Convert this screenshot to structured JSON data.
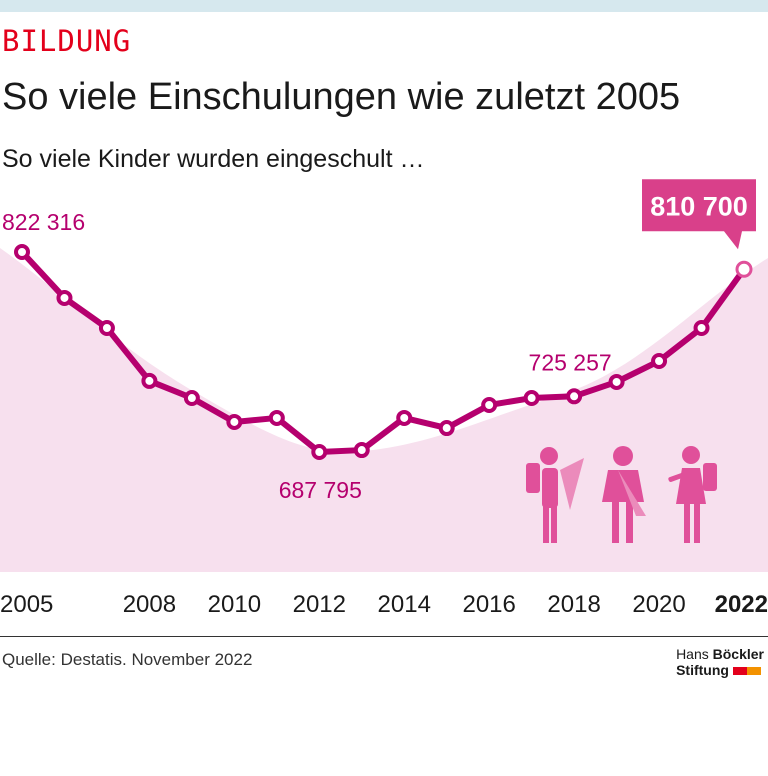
{
  "header": {
    "kicker": "BILDUNG",
    "title": "So viele Einschulungen wie zuletzt 2005",
    "subtitle": "So viele Kinder wurden eingeschult …"
  },
  "footer": {
    "source": "Quelle: Destatis. November 2022",
    "logo_line1_light": "Hans",
    "logo_line1_bold": "Böckler",
    "logo_line2": "Stiftung"
  },
  "colors": {
    "line": "#b5006e",
    "area": "#f7e0ee",
    "icons": "#e0509a",
    "highlight_box": "#d9408a",
    "logo_red": "#e3001b",
    "logo_orange": "#f39200"
  },
  "chart_data": {
    "type": "line",
    "x": [
      2005,
      2006,
      2007,
      2008,
      2009,
      2010,
      2011,
      2012,
      2013,
      2014,
      2015,
      2016,
      2017,
      2018,
      2019,
      2020,
      2021,
      2022
    ],
    "values": [
      822316,
      791400,
      771200,
      735600,
      724100,
      708000,
      710700,
      687795,
      689100,
      710700,
      703900,
      719400,
      724100,
      725257,
      734900,
      749000,
      771200,
      810700
    ],
    "x_tick_labels": [
      "2005",
      "2008",
      "2010",
      "2012",
      "2014",
      "2016",
      "2018",
      "2020",
      "2022"
    ],
    "annotations": [
      {
        "x": 2005,
        "label": "822 316"
      },
      {
        "x": 2012,
        "label": "687 795"
      },
      {
        "x": 2018,
        "label": "725 257"
      },
      {
        "x": 2022,
        "label": "810 700",
        "highlight": true
      }
    ],
    "grid": false,
    "legend": "none"
  }
}
